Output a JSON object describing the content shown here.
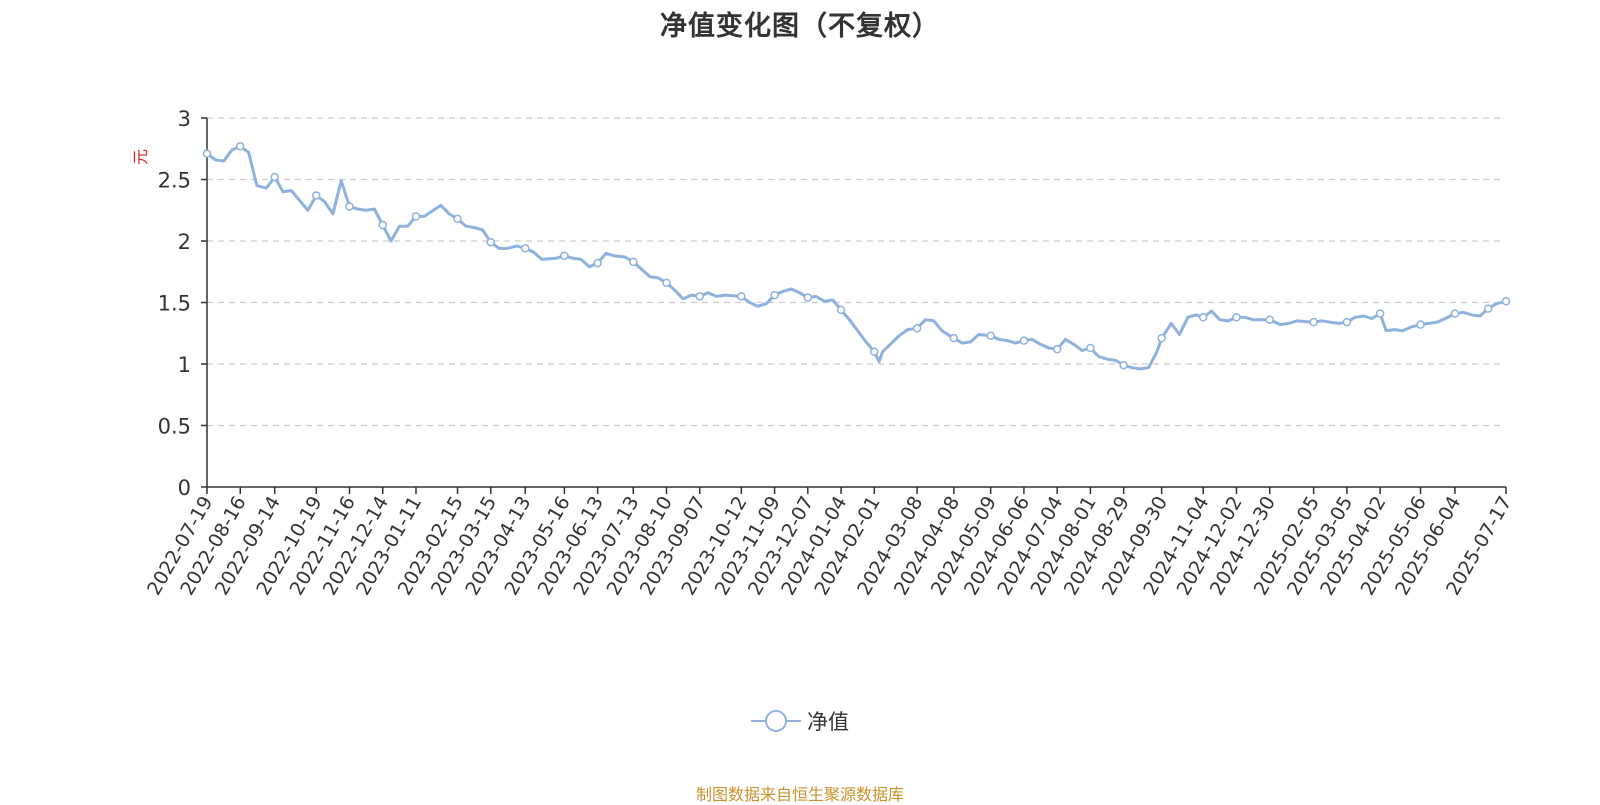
{
  "title": "净值变化图（不复权）",
  "source_note": "制图数据来自恒生聚源数据库",
  "chart_data": {
    "type": "line",
    "ylabel": "元",
    "ylim": [
      0,
      3
    ],
    "yticks": [
      "0",
      "0.5",
      "1",
      "1.5",
      "2",
      "2.5",
      "3"
    ],
    "grid": true,
    "legend_position": "bottom-center",
    "colors": {
      "series": "#8eb1dd",
      "axis": "#333333",
      "grid": "#cccccc",
      "ylabel": "#e02020"
    },
    "categories": [
      "2022-07-19",
      "2022-08-16",
      "2022-09-14",
      "2022-10-19",
      "2022-11-16",
      "2022-12-14",
      "2023-01-11",
      "2023-02-15",
      "2023-03-15",
      "2023-04-13",
      "2023-05-16",
      "2023-06-13",
      "2023-07-13",
      "2023-08-10",
      "2023-09-07",
      "2023-10-12",
      "2023-11-09",
      "2023-12-07",
      "2024-01-04",
      "2024-02-01",
      "2024-03-08",
      "2024-04-08",
      "2024-05-09",
      "2024-06-06",
      "2024-07-04",
      "2024-08-01",
      "2024-08-29",
      "2024-09-30",
      "2024-11-04",
      "2024-12-02",
      "2024-12-30",
      "2025-02-05",
      "2025-03-05",
      "2025-04-02",
      "2025-05-06",
      "2025-06-04",
      "2025-07-17"
    ],
    "series": [
      {
        "name": "净值",
        "points": [
          [
            "2022-07-19",
            2.71
          ],
          [
            "2022-07-26",
            2.66
          ],
          [
            "2022-08-02",
            2.65
          ],
          [
            "2022-08-09",
            2.74
          ],
          [
            "2022-08-16",
            2.77
          ],
          [
            "2022-08-23",
            2.72
          ],
          [
            "2022-08-30",
            2.45
          ],
          [
            "2022-09-07",
            2.43
          ],
          [
            "2022-09-14",
            2.52
          ],
          [
            "2022-09-21",
            2.4
          ],
          [
            "2022-09-28",
            2.41
          ],
          [
            "2022-10-12",
            2.25
          ],
          [
            "2022-10-19",
            2.37
          ],
          [
            "2022-10-26",
            2.32
          ],
          [
            "2022-11-02",
            2.22
          ],
          [
            "2022-11-09",
            2.49
          ],
          [
            "2022-11-16",
            2.28
          ],
          [
            "2022-11-23",
            2.26
          ],
          [
            "2022-11-30",
            2.25
          ],
          [
            "2022-12-07",
            2.26
          ],
          [
            "2022-12-14",
            2.13
          ],
          [
            "2022-12-21",
            2.0
          ],
          [
            "2022-12-28",
            2.12
          ],
          [
            "2023-01-04",
            2.12
          ],
          [
            "2023-01-11",
            2.2
          ],
          [
            "2023-01-18",
            2.2
          ],
          [
            "2023-02-01",
            2.29
          ],
          [
            "2023-02-08",
            2.22
          ],
          [
            "2023-02-15",
            2.18
          ],
          [
            "2023-02-22",
            2.12
          ],
          [
            "2023-03-01",
            2.11
          ],
          [
            "2023-03-08",
            2.09
          ],
          [
            "2023-03-15",
            1.99
          ],
          [
            "2023-03-22",
            1.94
          ],
          [
            "2023-03-29",
            1.94
          ],
          [
            "2023-04-06",
            1.96
          ],
          [
            "2023-04-13",
            1.94
          ],
          [
            "2023-04-20",
            1.91
          ],
          [
            "2023-04-27",
            1.85
          ],
          [
            "2023-05-09",
            1.86
          ],
          [
            "2023-05-16",
            1.88
          ],
          [
            "2023-05-23",
            1.86
          ],
          [
            "2023-05-30",
            1.85
          ],
          [
            "2023-06-06",
            1.79
          ],
          [
            "2023-06-13",
            1.82
          ],
          [
            "2023-06-20",
            1.9
          ],
          [
            "2023-06-27",
            1.88
          ],
          [
            "2023-07-06",
            1.87
          ],
          [
            "2023-07-13",
            1.83
          ],
          [
            "2023-07-20",
            1.77
          ],
          [
            "2023-07-27",
            1.71
          ],
          [
            "2023-08-03",
            1.7
          ],
          [
            "2023-08-10",
            1.66
          ],
          [
            "2023-08-17",
            1.6
          ],
          [
            "2023-08-24",
            1.53
          ],
          [
            "2023-08-31",
            1.56
          ],
          [
            "2023-09-07",
            1.55
          ],
          [
            "2023-09-14",
            1.58
          ],
          [
            "2023-09-21",
            1.55
          ],
          [
            "2023-09-28",
            1.56
          ],
          [
            "2023-10-12",
            1.55
          ],
          [
            "2023-10-19",
            1.5
          ],
          [
            "2023-10-26",
            1.47
          ],
          [
            "2023-11-02",
            1.49
          ],
          [
            "2023-11-09",
            1.56
          ],
          [
            "2023-11-16",
            1.59
          ],
          [
            "2023-11-23",
            1.61
          ],
          [
            "2023-11-30",
            1.58
          ],
          [
            "2023-12-07",
            1.54
          ],
          [
            "2023-12-14",
            1.55
          ],
          [
            "2023-12-21",
            1.51
          ],
          [
            "2023-12-28",
            1.52
          ],
          [
            "2024-01-04",
            1.44
          ],
          [
            "2024-01-11",
            1.36
          ],
          [
            "2024-01-18",
            1.27
          ],
          [
            "2024-01-25",
            1.18
          ],
          [
            "2024-02-01",
            1.1
          ],
          [
            "2024-02-05",
            1.02
          ],
          [
            "2024-02-08",
            1.1
          ],
          [
            "2024-02-22",
            1.23
          ],
          [
            "2024-02-29",
            1.28
          ],
          [
            "2024-03-08",
            1.29
          ],
          [
            "2024-03-15",
            1.36
          ],
          [
            "2024-03-22",
            1.35
          ],
          [
            "2024-03-29",
            1.27
          ],
          [
            "2024-04-08",
            1.21
          ],
          [
            "2024-04-15",
            1.17
          ],
          [
            "2024-04-22",
            1.18
          ],
          [
            "2024-04-29",
            1.24
          ],
          [
            "2024-05-09",
            1.23
          ],
          [
            "2024-05-16",
            1.2
          ],
          [
            "2024-05-23",
            1.19
          ],
          [
            "2024-05-30",
            1.17
          ],
          [
            "2024-06-06",
            1.19
          ],
          [
            "2024-06-13",
            1.2
          ],
          [
            "2024-06-20",
            1.16
          ],
          [
            "2024-06-27",
            1.13
          ],
          [
            "2024-07-04",
            1.12
          ],
          [
            "2024-07-11",
            1.2
          ],
          [
            "2024-07-18",
            1.16
          ],
          [
            "2024-07-25",
            1.11
          ],
          [
            "2024-08-01",
            1.13
          ],
          [
            "2024-08-08",
            1.06
          ],
          [
            "2024-08-15",
            1.04
          ],
          [
            "2024-08-22",
            1.03
          ],
          [
            "2024-08-29",
            0.99
          ],
          [
            "2024-09-05",
            0.97
          ],
          [
            "2024-09-12",
            0.96
          ],
          [
            "2024-09-19",
            0.97
          ],
          [
            "2024-09-26",
            1.1
          ],
          [
            "2024-09-30",
            1.21
          ],
          [
            "2024-10-08",
            1.33
          ],
          [
            "2024-10-15",
            1.24
          ],
          [
            "2024-10-22",
            1.38
          ],
          [
            "2024-10-29",
            1.4
          ],
          [
            "2024-11-04",
            1.38
          ],
          [
            "2024-11-11",
            1.43
          ],
          [
            "2024-11-18",
            1.36
          ],
          [
            "2024-11-25",
            1.35
          ],
          [
            "2024-12-02",
            1.38
          ],
          [
            "2024-12-09",
            1.38
          ],
          [
            "2024-12-16",
            1.36
          ],
          [
            "2024-12-23",
            1.36
          ],
          [
            "2024-12-30",
            1.36
          ],
          [
            "2025-01-08",
            1.32
          ],
          [
            "2025-01-15",
            1.33
          ],
          [
            "2025-01-22",
            1.35
          ],
          [
            "2025-02-05",
            1.34
          ],
          [
            "2025-02-12",
            1.35
          ],
          [
            "2025-02-19",
            1.34
          ],
          [
            "2025-02-26",
            1.33
          ],
          [
            "2025-03-05",
            1.34
          ],
          [
            "2025-03-12",
            1.38
          ],
          [
            "2025-03-19",
            1.39
          ],
          [
            "2025-03-26",
            1.37
          ],
          [
            "2025-04-02",
            1.41
          ],
          [
            "2025-04-07",
            1.27
          ],
          [
            "2025-04-14",
            1.28
          ],
          [
            "2025-04-21",
            1.27
          ],
          [
            "2025-04-28",
            1.3
          ],
          [
            "2025-05-06",
            1.32
          ],
          [
            "2025-05-13",
            1.33
          ],
          [
            "2025-05-20",
            1.34
          ],
          [
            "2025-05-27",
            1.37
          ],
          [
            "2025-06-04",
            1.41
          ],
          [
            "2025-06-11",
            1.42
          ],
          [
            "2025-06-18",
            1.4
          ],
          [
            "2025-06-25",
            1.39
          ],
          [
            "2025-07-02",
            1.45
          ],
          [
            "2025-07-09",
            1.49
          ],
          [
            "2025-07-17",
            1.51
          ]
        ],
        "markers": [
          "2022-07-19",
          "2022-08-16",
          "2022-09-14",
          "2022-10-19",
          "2022-11-16",
          "2022-12-14",
          "2023-01-11",
          "2023-02-15",
          "2023-03-15",
          "2023-04-13",
          "2023-05-16",
          "2023-06-13",
          "2023-07-13",
          "2023-08-10",
          "2023-09-07",
          "2023-10-12",
          "2023-11-09",
          "2023-12-07",
          "2024-01-04",
          "2024-02-01",
          "2024-03-08",
          "2024-04-08",
          "2024-05-09",
          "2024-06-06",
          "2024-07-04",
          "2024-08-01",
          "2024-08-29",
          "2024-09-30",
          "2024-11-04",
          "2024-12-02",
          "2024-12-30",
          "2025-02-05",
          "2025-03-05",
          "2025-04-02",
          "2025-05-06",
          "2025-06-04",
          "2025-07-02",
          "2025-07-17"
        ]
      }
    ]
  }
}
